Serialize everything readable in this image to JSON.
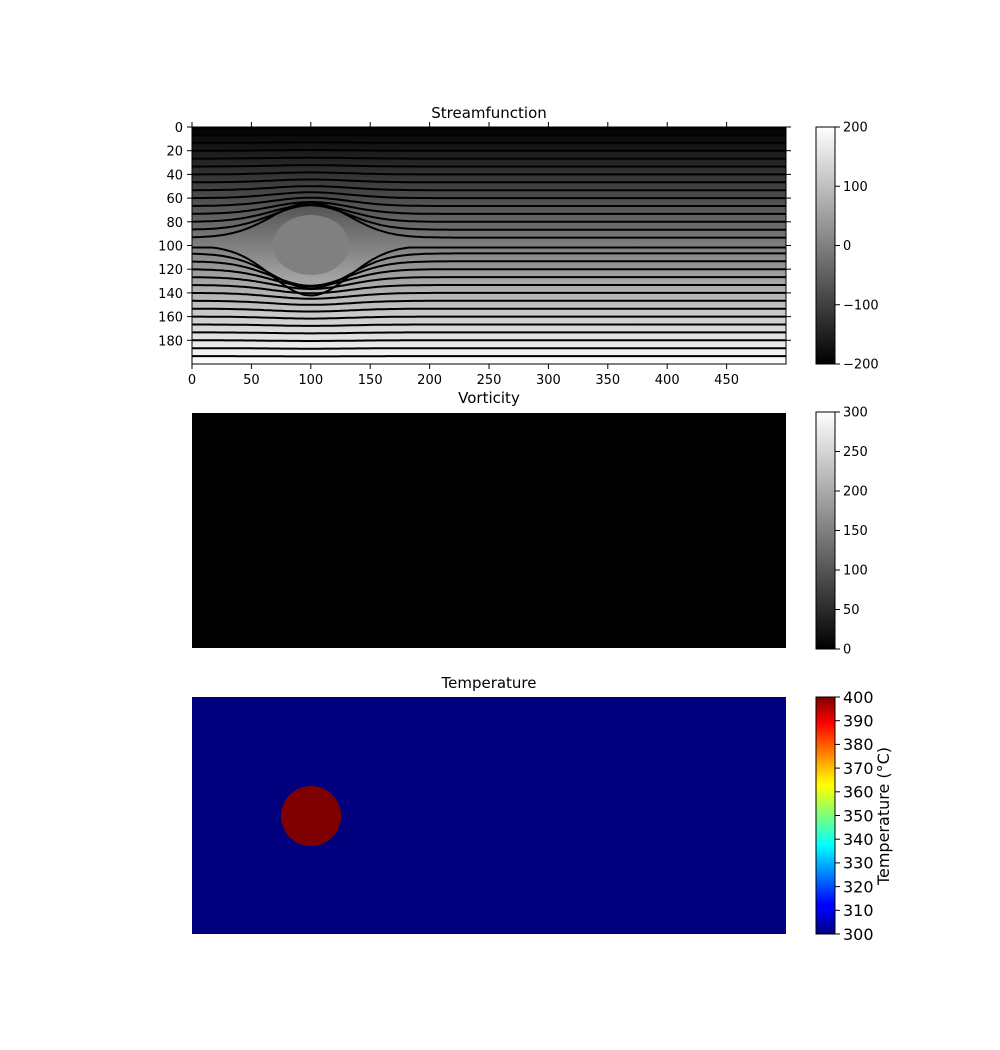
{
  "chart_data": [
    {
      "type": "heatmap",
      "title": "Streamfunction",
      "overlay": "contour",
      "colormap": "gray",
      "x_ticks": [
        0,
        50,
        100,
        150,
        200,
        250,
        300,
        350,
        400,
        450
      ],
      "y_ticks": [
        0,
        20,
        40,
        60,
        80,
        100,
        120,
        140,
        160,
        180
      ],
      "xlim": [
        0,
        500
      ],
      "ylim": [
        0,
        200
      ],
      "y_inverted": true,
      "field": "uniform flow, value increasing with row from -200 to 200, deflected around a circular obstacle",
      "obstacle": {
        "center": [
          100,
          100
        ],
        "radius": 25
      },
      "colorbar": {
        "range": [
          -200,
          200
        ],
        "ticks": [
          200,
          100,
          0,
          -100,
          -200
        ],
        "labels": [
          "200",
          "100",
          "0",
          "−100",
          "−200"
        ]
      }
    },
    {
      "type": "heatmap",
      "title": "Vorticity",
      "colormap": "gray",
      "uniform_value": 0,
      "colorbar": {
        "range": [
          0,
          300
        ],
        "ticks": [
          300,
          250,
          200,
          150,
          100,
          50,
          0
        ],
        "labels": [
          "300",
          "250",
          "200",
          "150",
          "100",
          "50",
          "0"
        ]
      }
    },
    {
      "type": "heatmap",
      "title": "Temperature",
      "colormap": "jet",
      "background_value": 300,
      "hot_region": {
        "shape": "circle",
        "center": [
          100,
          100
        ],
        "radius": 25,
        "value": 400
      },
      "colorbar": {
        "label": "Temperature (°C)",
        "range": [
          300,
          400
        ],
        "ticks": [
          400,
          390,
          380,
          370,
          360,
          350,
          340,
          330,
          320,
          310,
          300
        ],
        "labels": [
          "400",
          "390",
          "380",
          "370",
          "360",
          "350",
          "340",
          "330",
          "320",
          "310",
          "300"
        ]
      }
    }
  ]
}
